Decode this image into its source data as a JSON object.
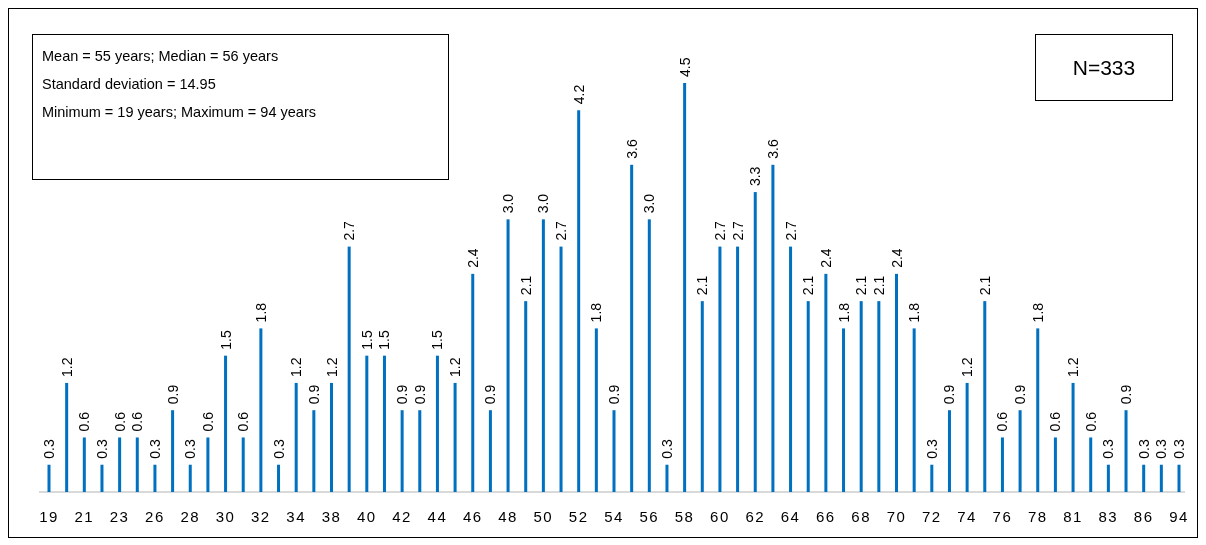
{
  "chart_data": {
    "type": "bar",
    "categories": [
      "19",
      null,
      "21",
      null,
      "23",
      null,
      "26",
      null,
      "28",
      null,
      "30",
      null,
      "32",
      null,
      "34",
      null,
      "38",
      null,
      "40",
      null,
      "42",
      null,
      "44",
      null,
      "46",
      null,
      "48",
      null,
      "50",
      null,
      "52",
      null,
      "54",
      null,
      "56",
      null,
      "58",
      null,
      "60",
      null,
      "62",
      null,
      "64",
      null,
      "66",
      null,
      "68",
      null,
      "70",
      null,
      "72",
      null,
      "74",
      null,
      "76",
      null,
      "78",
      null,
      "81",
      null,
      "83",
      null,
      "86",
      null,
      "94"
    ],
    "values": [
      0.3,
      1.2,
      0.6,
      0.3,
      0.6,
      0.6,
      0.3,
      0.9,
      0.3,
      0.6,
      1.5,
      0.6,
      1.8,
      0.3,
      1.2,
      0.9,
      1.2,
      2.7,
      1.5,
      1.5,
      0.9,
      0.9,
      1.5,
      1.2,
      2.4,
      0.9,
      3.0,
      2.1,
      3.0,
      2.7,
      4.2,
      1.8,
      0.9,
      3.6,
      3.0,
      0.3,
      4.5,
      2.1,
      2.7,
      2.7,
      3.3,
      3.6,
      2.7,
      2.1,
      2.4,
      1.8,
      2.1,
      2.1,
      2.4,
      1.8,
      0.3,
      0.9,
      1.2,
      2.1,
      0.6,
      0.9,
      1.8,
      0.6,
      1.2,
      0.6,
      0.3,
      0.9,
      0.3,
      0.3,
      0.3
    ],
    "value_labels": [
      "0.3",
      "1.2",
      "0.6",
      "0.3",
      "0.6",
      "0.6",
      "0.3",
      "0.9",
      "0.3",
      "0.6",
      "1.5",
      "0.6",
      "1.8",
      "0.3",
      "1.2",
      "0.9",
      "1.2",
      "2.7",
      "1.5",
      "1.5",
      "0.9",
      "0.9",
      "1.5",
      "1.2",
      "2.4",
      "0.9",
      "3.0",
      "2.1",
      "3.0",
      "2.7",
      "4.2",
      "1.8",
      "0.9",
      "3.6",
      "3.0",
      "0.3",
      "4.5",
      "2.1",
      "2.7",
      "2.7",
      "3.3",
      "3.6",
      "2.7",
      "2.1",
      "2.4",
      "1.8",
      "2.1",
      "2.1",
      "2.4",
      "1.8",
      "0.3",
      "0.9",
      "1.2",
      "2.1",
      "0.6",
      "0.9",
      "1.8",
      "0.6",
      "1.2",
      "0.6",
      "0.3",
      "0.9",
      "0.3",
      "0.3",
      "0.3"
    ],
    "color": "#0070c0",
    "annotations": [
      "Mean = 55 years; Median = 56 years\nStandard deviation = 14.95\nMinimum = 19 years; Maximum = 94 years",
      "N=333"
    ]
  }
}
